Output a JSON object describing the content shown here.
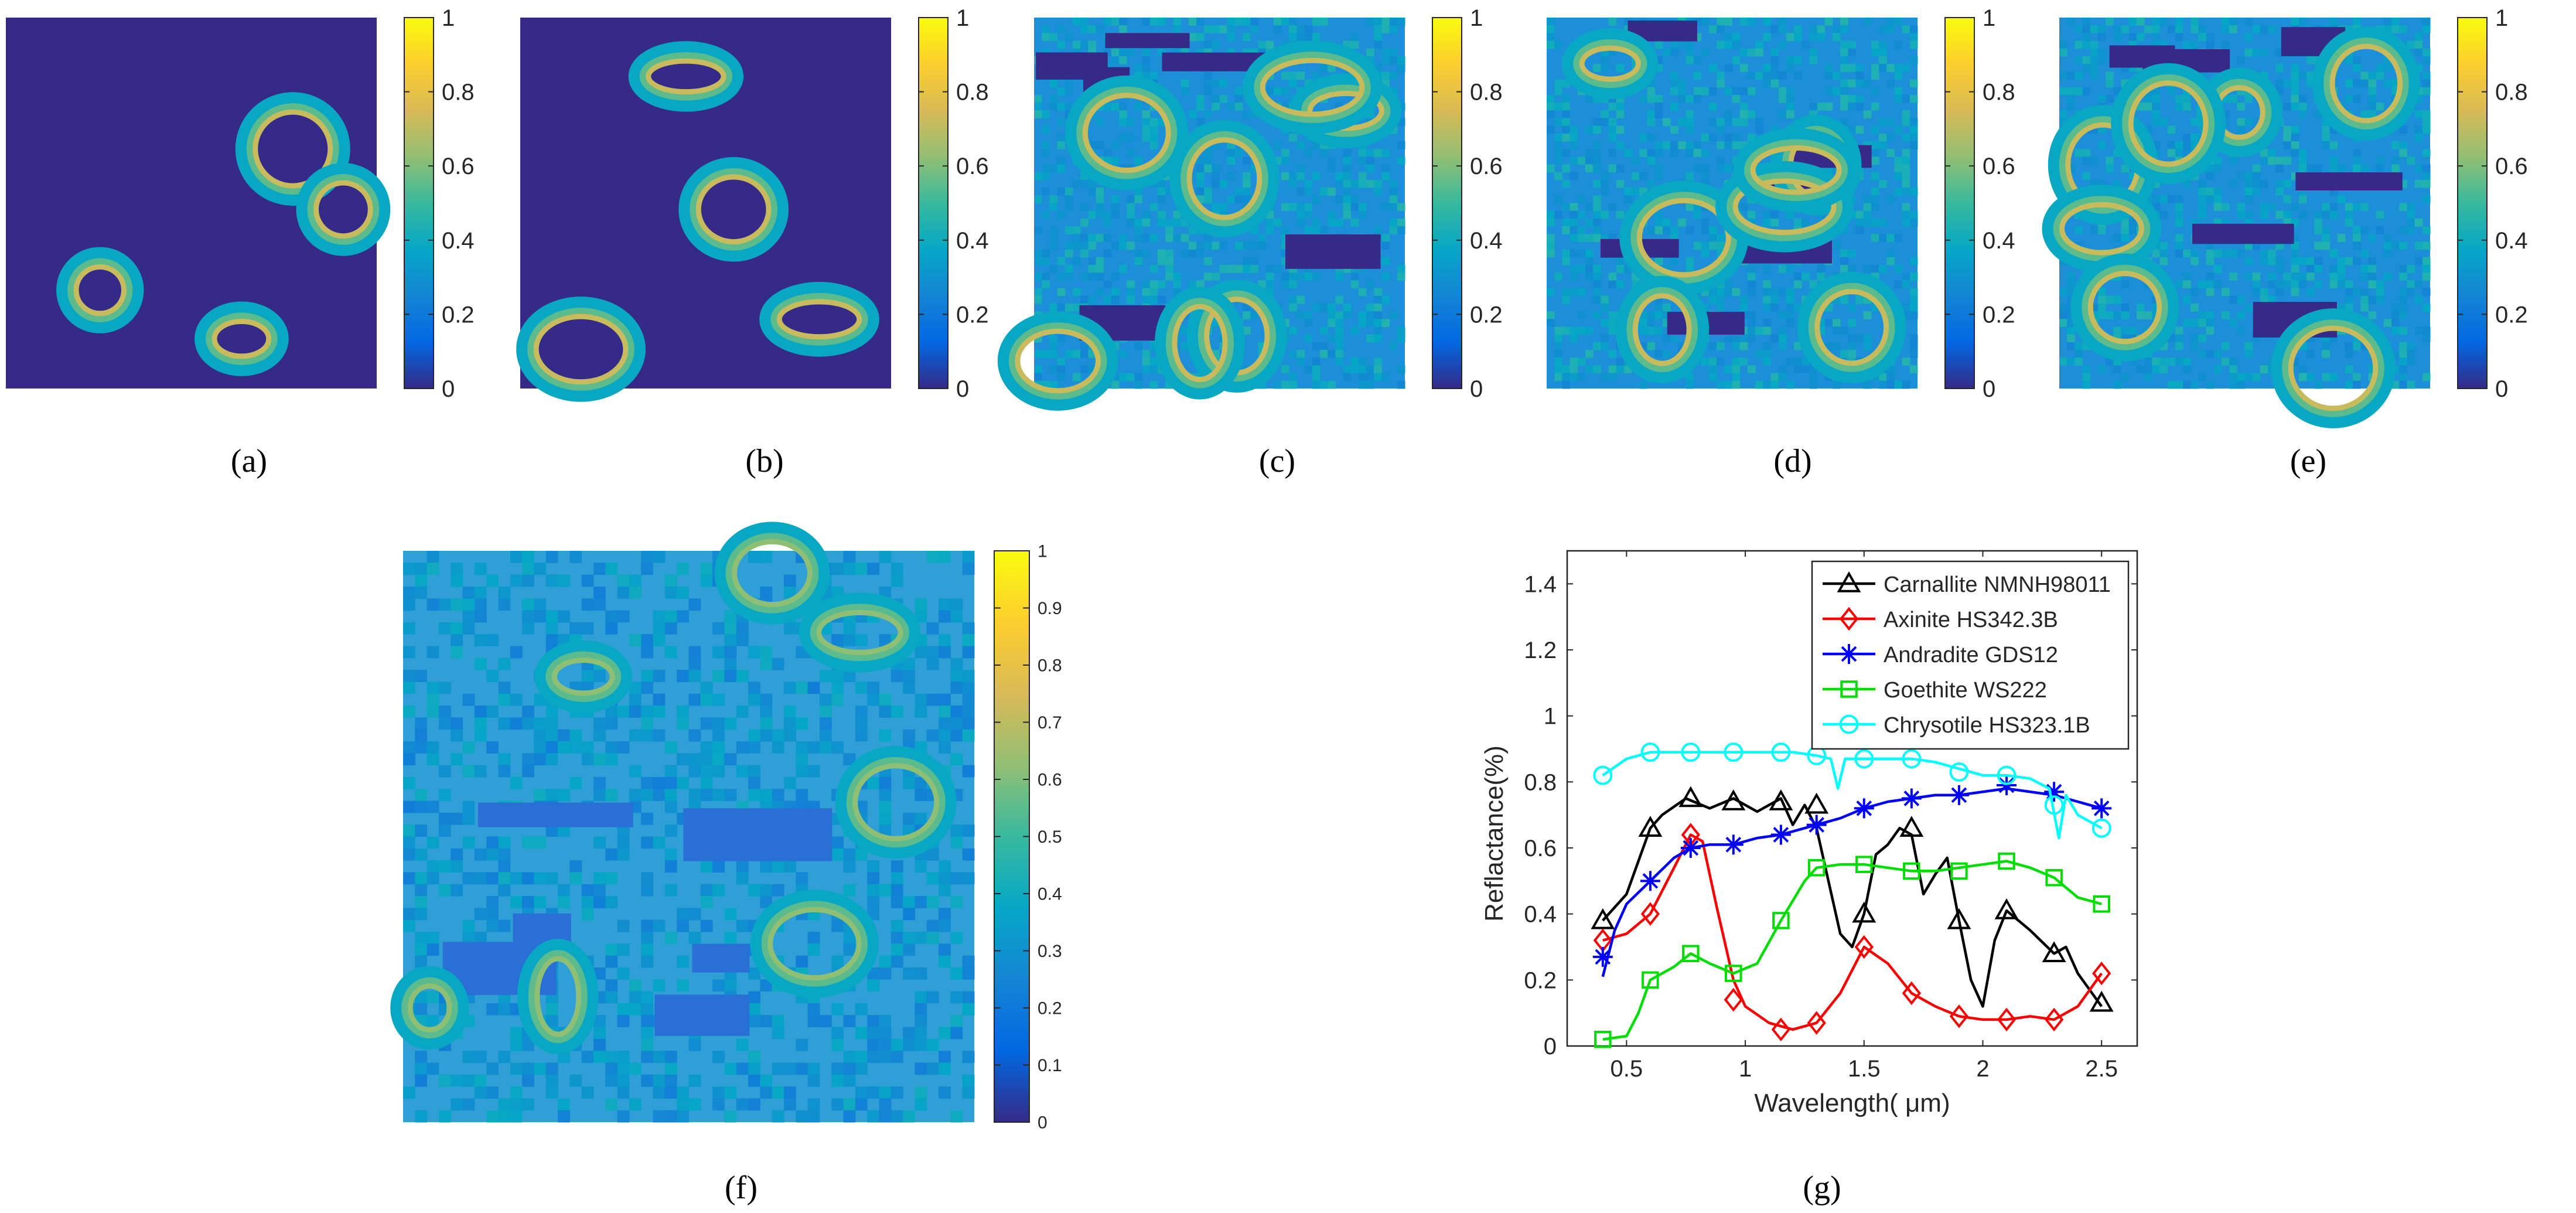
{
  "figure": {
    "captions": [
      "(a)",
      "(b)",
      "(c)",
      "(d)",
      "(e)",
      "(f)",
      "(g)"
    ]
  },
  "colormap": [
    "#352a87",
    "#0268e1",
    "#1485d4",
    "#06a7c6",
    "#38b99e",
    "#92bf73",
    "#d9ba56",
    "#fcce2e",
    "#f9fb0e"
  ],
  "chart_data": [
    {
      "id": "a",
      "type": "heatmap",
      "colorbar": {
        "min": 0,
        "max": 1,
        "ticks": [
          "0",
          "0.2",
          "0.4",
          "0.6",
          "0.8",
          "1"
        ]
      }
    },
    {
      "id": "b",
      "type": "heatmap",
      "colorbar": {
        "min": 0,
        "max": 1,
        "ticks": [
          "0",
          "0.2",
          "0.4",
          "0.6",
          "0.8",
          "1"
        ]
      }
    },
    {
      "id": "c",
      "type": "heatmap",
      "colorbar": {
        "min": 0,
        "max": 1,
        "ticks": [
          "0",
          "0.2",
          "0.4",
          "0.6",
          "0.8",
          "1"
        ]
      }
    },
    {
      "id": "d",
      "type": "heatmap",
      "colorbar": {
        "min": 0,
        "max": 1,
        "ticks": [
          "0",
          "0.2",
          "0.4",
          "0.6",
          "0.8",
          "1"
        ]
      }
    },
    {
      "id": "e",
      "type": "heatmap",
      "colorbar": {
        "min": 0,
        "max": 1,
        "ticks": [
          "0",
          "0.2",
          "0.4",
          "0.6",
          "0.8",
          "1"
        ]
      }
    },
    {
      "id": "f",
      "type": "heatmap",
      "colorbar": {
        "min": 0,
        "max": 1,
        "ticks": [
          "0",
          "0.1",
          "0.2",
          "0.3",
          "0.4",
          "0.5",
          "0.6",
          "0.7",
          "0.8",
          "0.9",
          "1"
        ]
      }
    },
    {
      "id": "g",
      "type": "line",
      "xlabel": "Wavelength( μm)",
      "ylabel": "Reflactance(%)",
      "xlim": [
        0.25,
        2.65
      ],
      "ylim": [
        0,
        1.5
      ],
      "xticks": [
        "0.5",
        "1",
        "1.5",
        "2",
        "2.5"
      ],
      "yticks": [
        "0",
        "0.2",
        "0.4",
        "0.6",
        "0.8",
        "1",
        "1.2",
        "1.4"
      ],
      "legend_position": "top-right",
      "series": [
        {
          "name": "Carnallite NMNH98011",
          "color": "#000000",
          "marker": "triangle",
          "x": [
            0.4,
            0.5,
            0.6,
            0.65,
            0.75,
            0.85,
            0.95,
            1.05,
            1.15,
            1.2,
            1.25,
            1.3,
            1.35,
            1.4,
            1.45,
            1.5,
            1.55,
            1.6,
            1.65,
            1.7,
            1.75,
            1.8,
            1.85,
            1.9,
            1.95,
            2.0,
            2.05,
            2.1,
            2.2,
            2.3,
            2.35,
            2.4,
            2.5
          ],
          "y": [
            0.38,
            0.46,
            0.66,
            0.7,
            0.75,
            0.72,
            0.75,
            0.71,
            0.75,
            0.67,
            0.73,
            0.66,
            0.5,
            0.34,
            0.3,
            0.4,
            0.58,
            0.61,
            0.66,
            0.64,
            0.46,
            0.52,
            0.57,
            0.38,
            0.2,
            0.12,
            0.32,
            0.41,
            0.35,
            0.28,
            0.3,
            0.22,
            0.12
          ],
          "marker_x": [
            0.4,
            0.6,
            0.77,
            0.95,
            1.15,
            1.3,
            1.5,
            1.7,
            1.9,
            2.1,
            2.3,
            2.5
          ],
          "marker_y": [
            0.38,
            0.66,
            0.75,
            0.74,
            0.74,
            0.73,
            0.4,
            0.66,
            0.38,
            0.41,
            0.28,
            0.13
          ]
        },
        {
          "name": "Axinite HS342.3B",
          "color": "#ff0000",
          "marker": "diamond",
          "x": [
            0.4,
            0.5,
            0.6,
            0.7,
            0.77,
            0.82,
            0.88,
            0.95,
            1.0,
            1.1,
            1.2,
            1.3,
            1.4,
            1.5,
            1.6,
            1.7,
            1.8,
            1.9,
            2.0,
            2.1,
            2.2,
            2.3,
            2.4,
            2.5
          ],
          "y": [
            0.32,
            0.34,
            0.4,
            0.54,
            0.64,
            0.62,
            0.42,
            0.2,
            0.12,
            0.07,
            0.05,
            0.07,
            0.16,
            0.3,
            0.25,
            0.16,
            0.12,
            0.09,
            0.08,
            0.08,
            0.09,
            0.08,
            0.12,
            0.22
          ],
          "marker_x": [
            0.4,
            0.6,
            0.77,
            0.95,
            1.15,
            1.3,
            1.5,
            1.7,
            1.9,
            2.1,
            2.3,
            2.5
          ],
          "marker_y": [
            0.32,
            0.4,
            0.64,
            0.14,
            0.05,
            0.07,
            0.3,
            0.16,
            0.09,
            0.08,
            0.08,
            0.22
          ]
        },
        {
          "name": "Andradite GDS12",
          "color": "#0000ff",
          "marker": "asterisk",
          "x": [
            0.4,
            0.45,
            0.5,
            0.6,
            0.7,
            0.77,
            0.85,
            0.95,
            1.05,
            1.15,
            1.25,
            1.3,
            1.4,
            1.5,
            1.6,
            1.7,
            1.8,
            1.9,
            2.0,
            2.1,
            2.2,
            2.3,
            2.4,
            2.5
          ],
          "y": [
            0.21,
            0.35,
            0.43,
            0.5,
            0.57,
            0.6,
            0.61,
            0.61,
            0.63,
            0.64,
            0.66,
            0.67,
            0.69,
            0.72,
            0.74,
            0.75,
            0.76,
            0.76,
            0.77,
            0.78,
            0.77,
            0.76,
            0.74,
            0.72
          ],
          "marker_x": [
            0.4,
            0.6,
            0.77,
            0.95,
            1.15,
            1.3,
            1.5,
            1.7,
            1.9,
            2.1,
            2.3,
            2.5
          ],
          "marker_y": [
            0.27,
            0.5,
            0.6,
            0.61,
            0.64,
            0.67,
            0.72,
            0.75,
            0.76,
            0.79,
            0.77,
            0.72
          ]
        },
        {
          "name": "Goethite WS222",
          "color": "#00dd00",
          "marker": "square",
          "x": [
            0.4,
            0.5,
            0.55,
            0.6,
            0.7,
            0.77,
            0.85,
            0.95,
            1.05,
            1.15,
            1.25,
            1.3,
            1.4,
            1.5,
            1.6,
            1.7,
            1.8,
            1.9,
            2.0,
            2.1,
            2.2,
            2.3,
            2.4,
            2.5
          ],
          "y": [
            0.02,
            0.03,
            0.1,
            0.2,
            0.24,
            0.28,
            0.25,
            0.22,
            0.25,
            0.38,
            0.5,
            0.54,
            0.55,
            0.55,
            0.54,
            0.53,
            0.53,
            0.54,
            0.55,
            0.56,
            0.54,
            0.51,
            0.45,
            0.43
          ],
          "marker_x": [
            0.4,
            0.6,
            0.77,
            0.95,
            1.15,
            1.3,
            1.5,
            1.7,
            1.9,
            2.1,
            2.3,
            2.5
          ],
          "marker_y": [
            0.02,
            0.2,
            0.28,
            0.22,
            0.38,
            0.54,
            0.55,
            0.53,
            0.53,
            0.56,
            0.51,
            0.43
          ]
        },
        {
          "name": "Chrysotile HS323.1B",
          "color": "#00ffff",
          "marker": "circle",
          "x": [
            0.4,
            0.5,
            0.6,
            0.7,
            0.8,
            0.9,
            1.0,
            1.1,
            1.2,
            1.3,
            1.36,
            1.39,
            1.42,
            1.5,
            1.6,
            1.7,
            1.8,
            1.9,
            2.0,
            2.1,
            2.2,
            2.28,
            2.32,
            2.35,
            2.4,
            2.5
          ],
          "y": [
            0.82,
            0.87,
            0.89,
            0.89,
            0.89,
            0.89,
            0.89,
            0.89,
            0.89,
            0.88,
            0.87,
            0.78,
            0.87,
            0.87,
            0.87,
            0.87,
            0.86,
            0.84,
            0.82,
            0.82,
            0.81,
            0.78,
            0.63,
            0.76,
            0.7,
            0.66
          ],
          "marker_x": [
            0.4,
            0.6,
            0.77,
            0.95,
            1.15,
            1.3,
            1.5,
            1.7,
            1.9,
            2.1,
            2.3,
            2.5
          ],
          "marker_y": [
            0.82,
            0.89,
            0.89,
            0.89,
            0.89,
            0.88,
            0.87,
            0.87,
            0.83,
            0.82,
            0.73,
            0.66
          ]
        }
      ]
    }
  ]
}
